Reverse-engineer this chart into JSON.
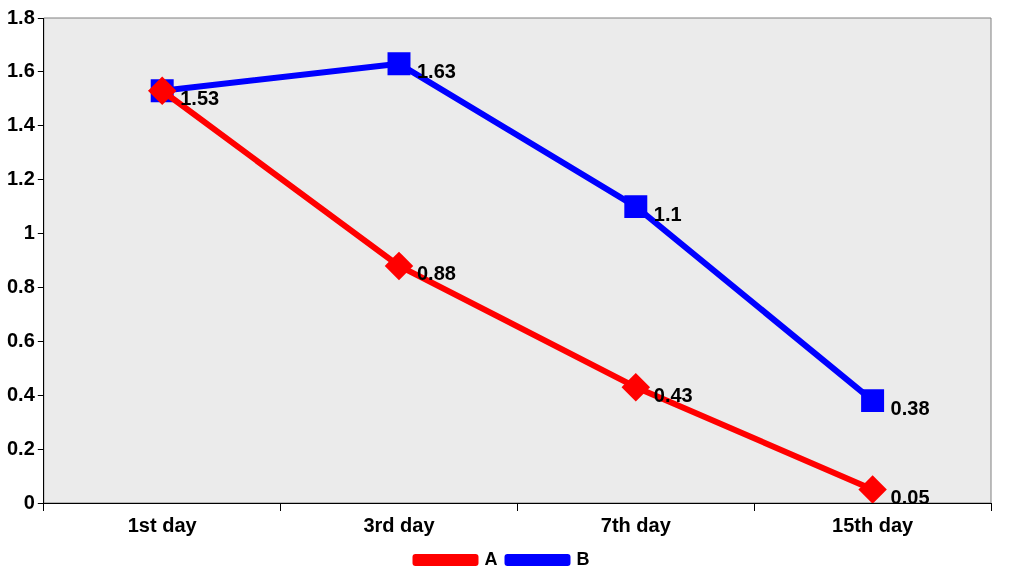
{
  "chart_data": {
    "type": "line",
    "categories": [
      "1st day",
      "3rd day",
      "7th day",
      "15th day"
    ],
    "ylim": [
      0,
      1.8
    ],
    "yticks": [
      0,
      0.2,
      0.4,
      0.6,
      0.8,
      1,
      1.2,
      1.4,
      1.6,
      1.8
    ],
    "grid": false,
    "legend": "bottom",
    "line_style": "solid",
    "series": [
      {
        "name": "A",
        "color": "#ff0000",
        "marker": "diamond",
        "values": [
          1.53,
          0.88,
          0.43,
          0.05
        ],
        "value_labels": [
          null,
          "0.88",
          "0.43",
          "0.05"
        ]
      },
      {
        "name": "B",
        "color": "#0000ff",
        "marker": "square",
        "values": [
          1.53,
          1.63,
          1.1,
          0.38
        ],
        "value_labels": [
          "1.53",
          "1.63",
          "1.1",
          "0.38"
        ]
      }
    ]
  }
}
